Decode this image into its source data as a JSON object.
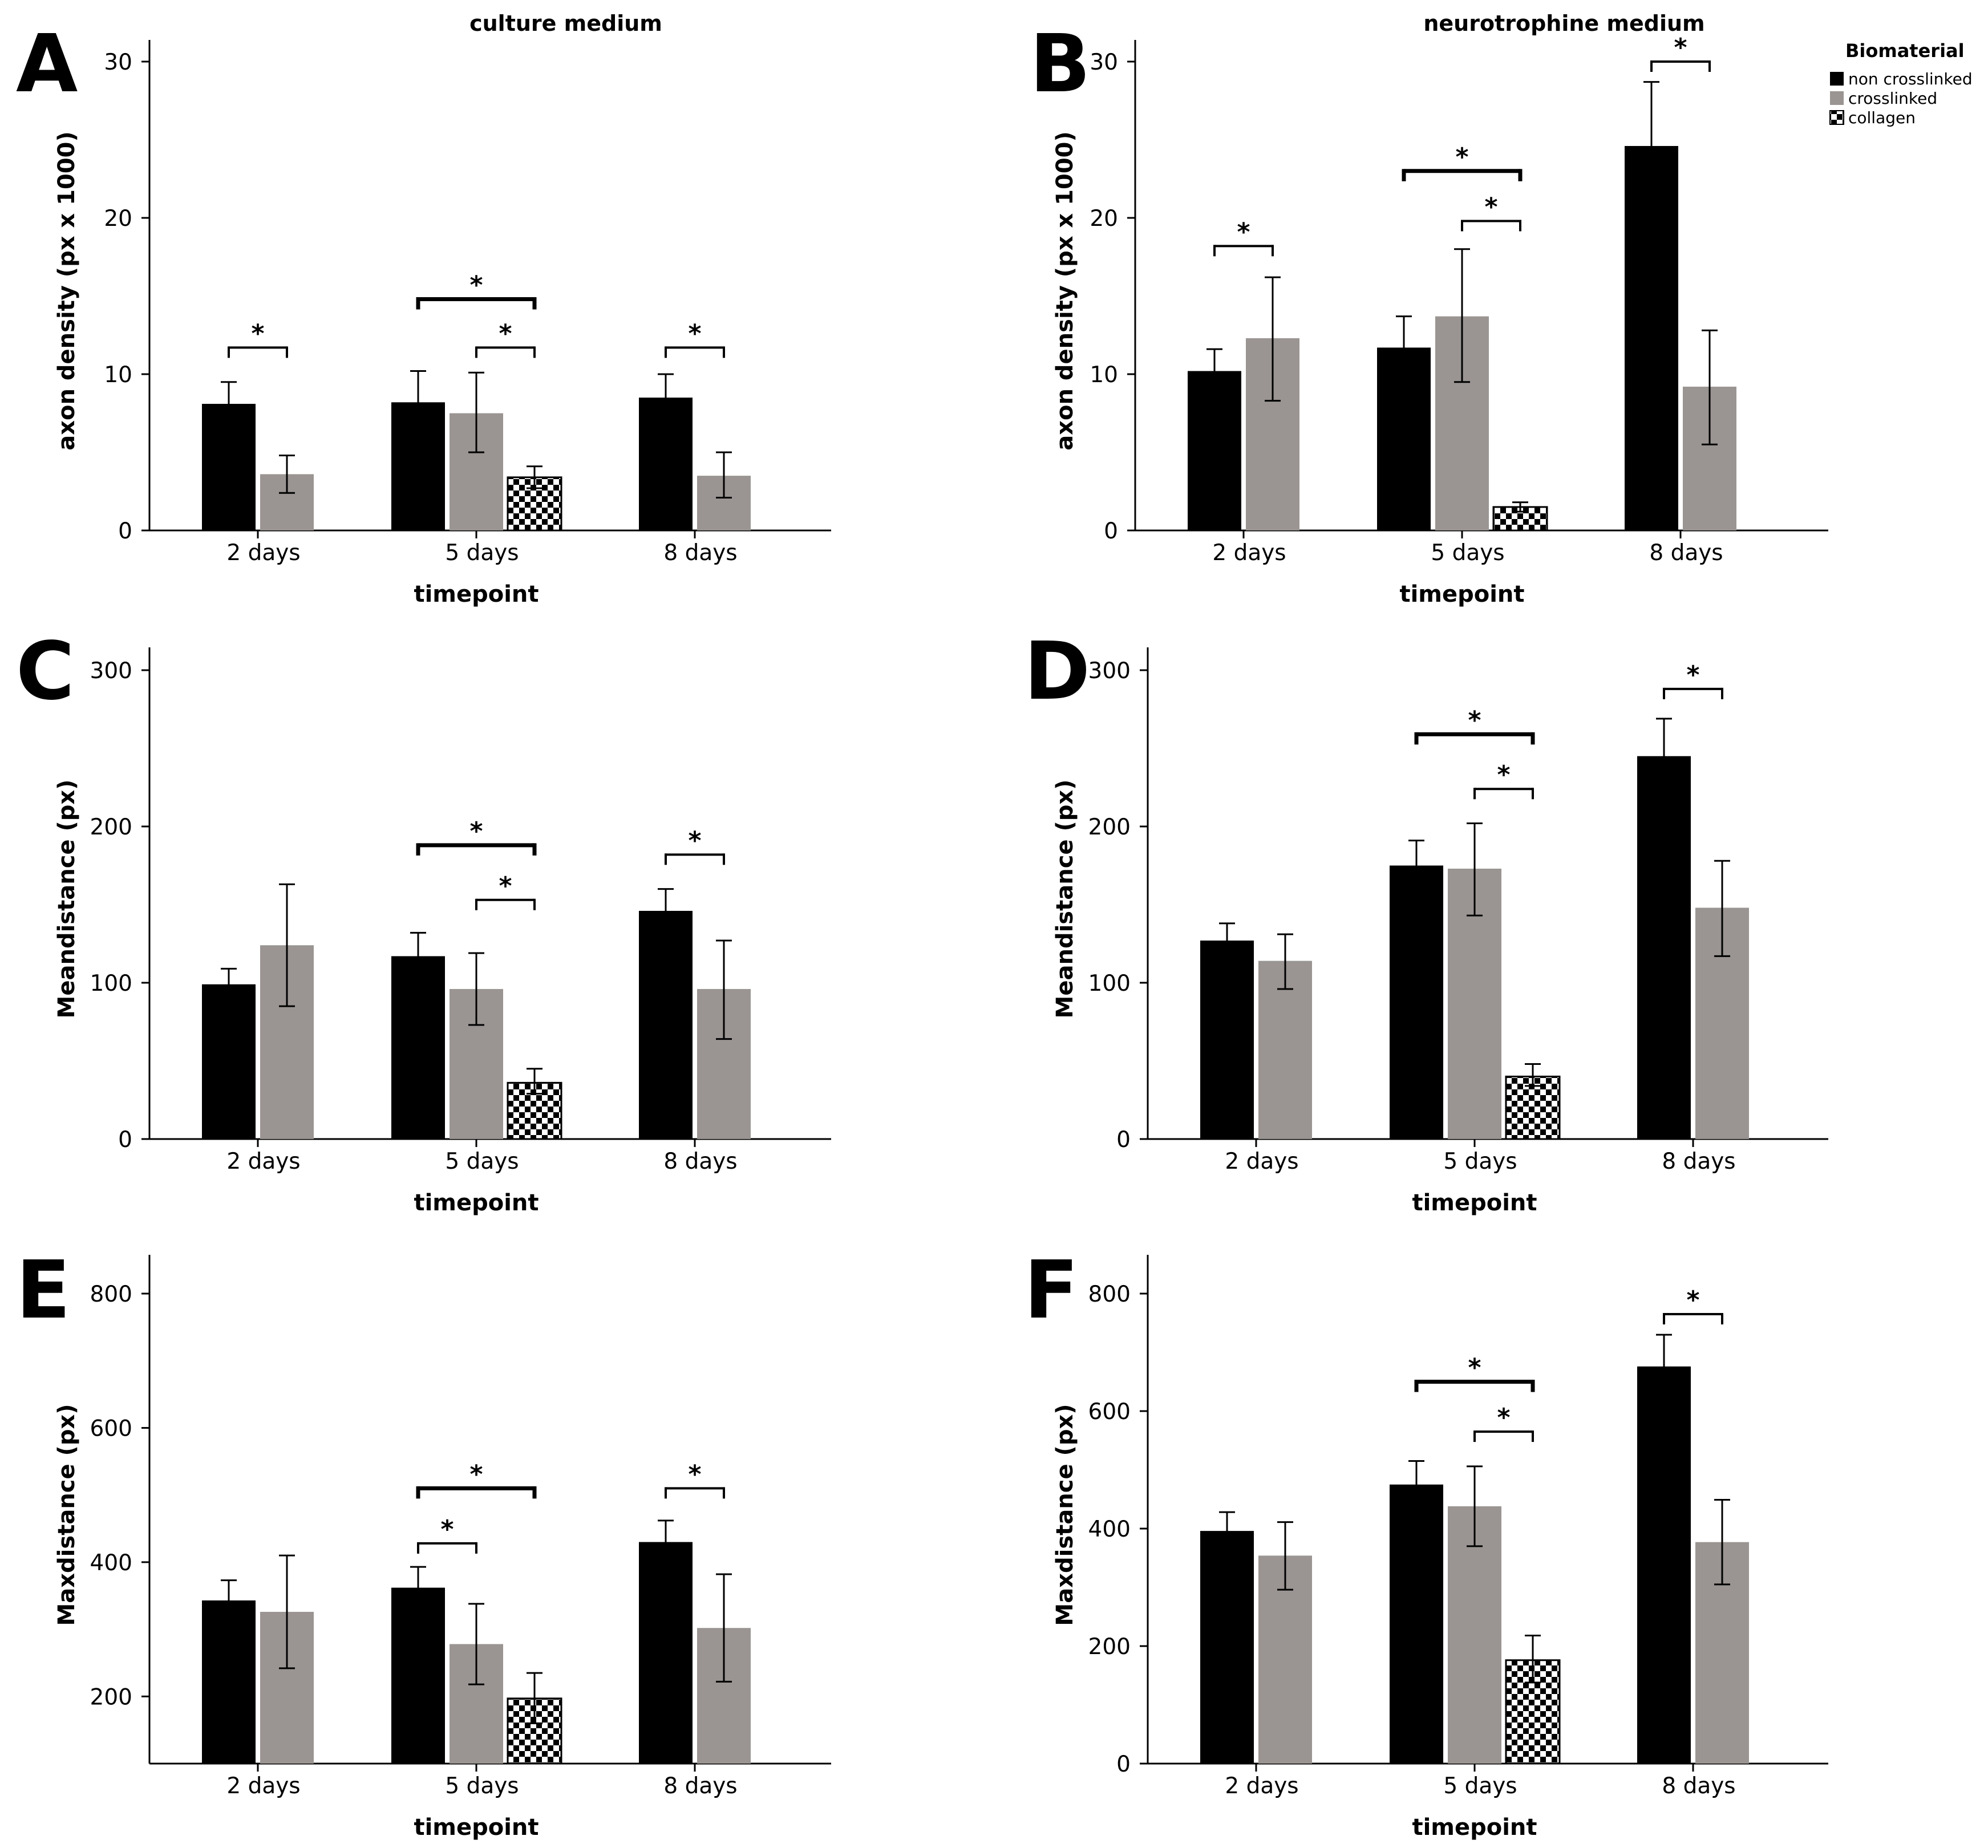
{
  "legend": {
    "title": "Biomaterial",
    "items": [
      {
        "label": "non crosslinked",
        "fill": "#000000"
      },
      {
        "label": "crosslinked",
        "fill": "#9a9592"
      },
      {
        "label": "collagen",
        "fill": "checker"
      }
    ]
  },
  "colors": {
    "non_crosslinked": "#000000",
    "crosslinked": "#9a9592",
    "collagen": "checker"
  },
  "chart_data": [
    {
      "letter": "A",
      "type": "bar",
      "title": "culture medium",
      "xlabel": "timepoint",
      "ylabel": "axon density (px x 1000)",
      "ylim": [
        0,
        30
      ],
      "yticks": [
        0,
        10,
        20,
        30
      ],
      "categories": [
        "2 days",
        "5 days",
        "8 days"
      ],
      "series": [
        {
          "name": "non crosslinked",
          "values": [
            8.1,
            8.2,
            8.5
          ],
          "err_low": [
            6.8,
            6.2,
            7.2
          ],
          "err_high": [
            9.5,
            10.2,
            10.0
          ]
        },
        {
          "name": "crosslinked",
          "values": [
            3.6,
            7.5,
            3.5
          ],
          "err_low": [
            2.4,
            5.0,
            2.1
          ],
          "err_high": [
            4.8,
            10.1,
            5.0
          ]
        },
        {
          "name": "collagen",
          "values": [
            null,
            3.4,
            null
          ],
          "err_low": [
            null,
            2.7,
            null
          ],
          "err_high": [
            null,
            4.1,
            null
          ]
        }
      ],
      "significance": [
        {
          "cat": 0,
          "from": 0,
          "to": 1,
          "y": 11.7,
          "label": "*",
          "bold": false
        },
        {
          "cat": 1,
          "from": 1,
          "to": 2,
          "y": 11.7,
          "label": "*",
          "bold": false
        },
        {
          "cat": 1,
          "from": 0,
          "to": 2,
          "y": 14.8,
          "label": "*",
          "bold": true
        },
        {
          "cat": 2,
          "from": 0,
          "to": 1,
          "y": 11.7,
          "label": "*",
          "bold": false
        }
      ]
    },
    {
      "letter": "B",
      "type": "bar",
      "title": "neurotrophine medium",
      "xlabel": "timepoint",
      "ylabel": "axon density (px x 1000)",
      "ylim": [
        0,
        30
      ],
      "yticks": [
        0,
        10,
        20,
        30
      ],
      "categories": [
        "2 days",
        "5 days",
        "8 days"
      ],
      "series": [
        {
          "name": "non crosslinked",
          "values": [
            10.2,
            11.7,
            24.6
          ],
          "err_low": [
            8.8,
            10.2,
            20.5
          ],
          "err_high": [
            11.6,
            13.7,
            28.7
          ]
        },
        {
          "name": "crosslinked",
          "values": [
            12.3,
            13.7,
            9.2
          ],
          "err_low": [
            8.3,
            9.5,
            5.5
          ],
          "err_high": [
            16.2,
            18.0,
            12.8
          ]
        },
        {
          "name": "collagen",
          "values": [
            null,
            1.5,
            null
          ],
          "err_low": [
            null,
            1.2,
            null
          ],
          "err_high": [
            null,
            1.8,
            null
          ]
        }
      ],
      "significance": [
        {
          "cat": 0,
          "from": 0,
          "to": 1,
          "y": 18.2,
          "label": "*",
          "bold": false
        },
        {
          "cat": 1,
          "from": 1,
          "to": 2,
          "y": 19.8,
          "label": "*",
          "bold": false
        },
        {
          "cat": 1,
          "from": 0,
          "to": 2,
          "y": 23.0,
          "label": "*",
          "bold": true
        },
        {
          "cat": 2,
          "from": 0,
          "to": 1,
          "y": 30.0,
          "label": "*",
          "bold": false
        }
      ]
    },
    {
      "letter": "C",
      "type": "bar",
      "xlabel": "timepoint",
      "ylabel": "Meandistance (px)",
      "ylim": [
        0,
        300
      ],
      "yticks": [
        0,
        100,
        200,
        300
      ],
      "categories": [
        "2 days",
        "5 days",
        "8 days"
      ],
      "series": [
        {
          "name": "non crosslinked",
          "values": [
            99,
            117,
            146
          ],
          "err_low": [
            89,
            103,
            132
          ],
          "err_high": [
            109,
            132,
            160
          ]
        },
        {
          "name": "crosslinked",
          "values": [
            124,
            96,
            96
          ],
          "err_low": [
            85,
            73,
            64
          ],
          "err_high": [
            163,
            119,
            127
          ]
        },
        {
          "name": "collagen",
          "values": [
            null,
            36,
            null
          ],
          "err_low": [
            null,
            29,
            null
          ],
          "err_high": [
            null,
            45,
            null
          ]
        }
      ],
      "significance": [
        {
          "cat": 1,
          "from": 1,
          "to": 2,
          "y": 153,
          "label": "*",
          "bold": false
        },
        {
          "cat": 1,
          "from": 0,
          "to": 2,
          "y": 188,
          "label": "*",
          "bold": true
        },
        {
          "cat": 2,
          "from": 0,
          "to": 1,
          "y": 182,
          "label": "*",
          "bold": false
        }
      ]
    },
    {
      "letter": "D",
      "type": "bar",
      "xlabel": "timepoint",
      "ylabel": "Meandistance (px)",
      "ylim": [
        0,
        300
      ],
      "yticks": [
        0,
        100,
        200,
        300
      ],
      "categories": [
        "2 days",
        "5 days",
        "8 days"
      ],
      "series": [
        {
          "name": "non crosslinked",
          "values": [
            127,
            175,
            245
          ],
          "err_low": [
            117,
            159,
            223
          ],
          "err_high": [
            138,
            191,
            269
          ]
        },
        {
          "name": "crosslinked",
          "values": [
            114,
            173,
            148
          ],
          "err_low": [
            96,
            143,
            117
          ],
          "err_high": [
            131,
            202,
            178
          ]
        },
        {
          "name": "collagen",
          "values": [
            null,
            40,
            null
          ],
          "err_low": [
            null,
            34,
            null
          ],
          "err_high": [
            null,
            48,
            null
          ]
        }
      ],
      "significance": [
        {
          "cat": 1,
          "from": 1,
          "to": 2,
          "y": 224,
          "label": "*",
          "bold": false
        },
        {
          "cat": 1,
          "from": 0,
          "to": 2,
          "y": 259,
          "label": "*",
          "bold": true
        },
        {
          "cat": 2,
          "from": 0,
          "to": 1,
          "y": 288,
          "label": "*",
          "bold": false
        }
      ]
    },
    {
      "letter": "E",
      "type": "bar",
      "xlabel": "timepoint",
      "ylabel": "Maxdistance (px)",
      "ylim": [
        100,
        840
      ],
      "yticks": [
        200,
        400,
        600,
        800
      ],
      "categories": [
        "2 days",
        "5 days",
        "8 days"
      ],
      "series": [
        {
          "name": "non crosslinked",
          "values": [
            343,
            362,
            430
          ],
          "err_low": [
            313,
            330,
            398
          ],
          "err_high": [
            373,
            393,
            462
          ]
        },
        {
          "name": "crosslinked",
          "values": [
            326,
            278,
            302
          ],
          "err_low": [
            242,
            218,
            222
          ],
          "err_high": [
            410,
            338,
            382
          ]
        },
        {
          "name": "collagen",
          "values": [
            null,
            197,
            null
          ],
          "err_low": [
            null,
            160,
            null
          ],
          "err_high": [
            null,
            235,
            null
          ]
        }
      ],
      "significance": [
        {
          "cat": 1,
          "from": 0,
          "to": 1,
          "y": 428,
          "label": "*",
          "bold": false
        },
        {
          "cat": 1,
          "from": 0,
          "to": 2,
          "y": 510,
          "label": "*",
          "bold": true
        },
        {
          "cat": 2,
          "from": 0,
          "to": 1,
          "y": 510,
          "label": "*",
          "bold": false
        }
      ]
    },
    {
      "letter": "F",
      "type": "bar",
      "xlabel": "timepoint",
      "ylabel": "Maxdistance (px)",
      "ylim": [
        0,
        800
      ],
      "yticks": [
        0,
        200,
        400,
        600,
        800
      ],
      "categories": [
        "2 days",
        "5 days",
        "8 days"
      ],
      "series": [
        {
          "name": "non crosslinked",
          "values": [
            396,
            475,
            676
          ],
          "err_low": [
            364,
            435,
            622
          ],
          "err_high": [
            428,
            515,
            730
          ]
        },
        {
          "name": "crosslinked",
          "values": [
            354,
            438,
            377
          ],
          "err_low": [
            296,
            370,
            305
          ],
          "err_high": [
            411,
            506,
            449
          ]
        },
        {
          "name": "collagen",
          "values": [
            null,
            176,
            null
          ],
          "err_low": [
            null,
            138,
            null
          ],
          "err_high": [
            null,
            218,
            null
          ]
        }
      ],
      "significance": [
        {
          "cat": 1,
          "from": 1,
          "to": 2,
          "y": 565,
          "label": "*",
          "bold": false
        },
        {
          "cat": 1,
          "from": 0,
          "to": 2,
          "y": 650,
          "label": "*",
          "bold": true
        },
        {
          "cat": 2,
          "from": 0,
          "to": 1,
          "y": 765,
          "label": "*",
          "bold": false
        }
      ]
    }
  ]
}
